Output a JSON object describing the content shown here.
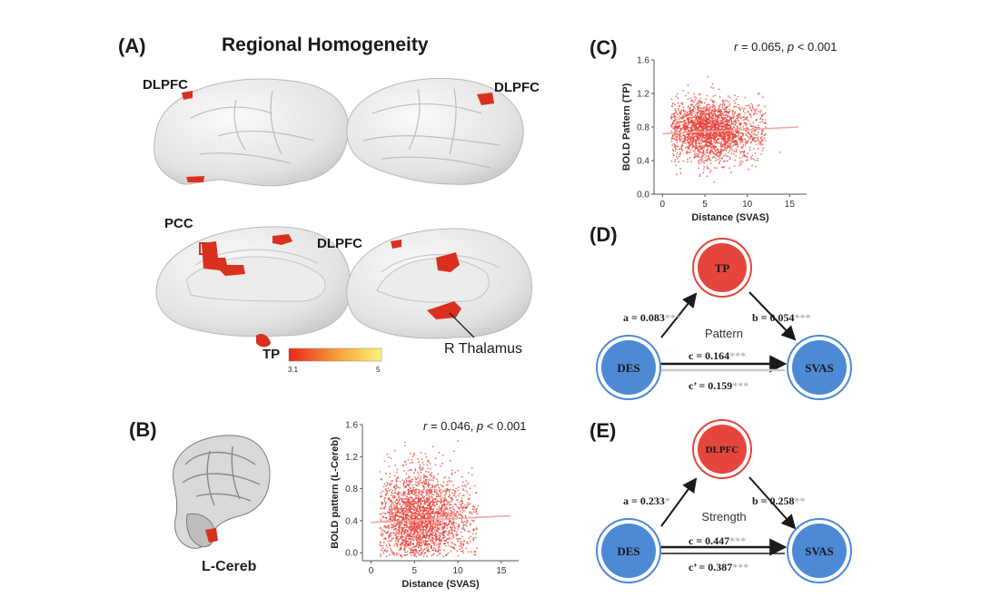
{
  "panel_a": {
    "letter": "(A)",
    "title": "Regional Homogeneity",
    "labels": {
      "dlpfc_left_lateral": "DLPFC",
      "dlpfc_right_lateral": "DLPFC",
      "pcc": "PCC",
      "dlpfc_medial": "DLPFC",
      "tp": "TP",
      "r_thalamus": "R Thalamus"
    },
    "colorbar": {
      "min_label": "3.1",
      "max_label": "5",
      "colors": [
        "#e8281e",
        "#f6a43a",
        "#fff27a"
      ]
    }
  },
  "panel_b": {
    "letter": "(B)",
    "brain_label": "L-Cereb",
    "stat_text": {
      "r_sym": "r",
      "r_val": " = 0.046, ",
      "p_sym": "p",
      "p_val": " < 0.001"
    }
  },
  "panel_c": {
    "letter": "(C)",
    "stat_text": {
      "r_sym": "r",
      "r_val": " = 0.065, ",
      "p_sym": "p",
      "p_val": " < 0.001"
    }
  },
  "panel_d": {
    "letter": "(D)",
    "mediator": "TP",
    "left": "DES",
    "right": "SVAS",
    "middle_label": "Pattern",
    "a": {
      "text": "a = 0.083",
      "stars": "***"
    },
    "b": {
      "text": "b = 0.054",
      "stars": "***"
    },
    "c": {
      "text": "c = 0.164",
      "stars": "***"
    },
    "c_prime": {
      "text": "c’ = 0.159",
      "stars": "***"
    }
  },
  "panel_e": {
    "letter": "(E)",
    "mediator": "DLPFC",
    "left": "DES",
    "right": "SVAS",
    "middle_label": "Strength",
    "a": {
      "text": "a = 0.233",
      "stars": "*"
    },
    "b": {
      "text": "b = 0.258",
      "stars": "**"
    },
    "c": {
      "text": "c = 0.447",
      "stars": "***"
    },
    "c_prime": {
      "text": "c’ = 0.387",
      "stars": "***"
    }
  },
  "colors": {
    "scatter_point": "#e8443c",
    "node_red": "#e5453d",
    "node_blue": "#4d8ad6",
    "brain_gray": "#e2e2e2",
    "activation": "#d9301f"
  },
  "chart_data": [
    {
      "type": "scatter",
      "id": "panel_c",
      "xlabel": "Distance (SVAS)",
      "ylabel": "BOLD Pattern (TP)",
      "xlim": [
        -1,
        17
      ],
      "ylim": [
        0,
        1.6
      ],
      "xticks": [
        0,
        5,
        10,
        15
      ],
      "yticks": [
        0.0,
        0.4,
        0.8,
        1.2,
        1.6
      ],
      "ytick_labels": [
        "0.0",
        "0.4",
        "0.8",
        "1.2",
        "1.6"
      ],
      "r": 0.065,
      "p": "< 0.001",
      "fit_line": {
        "x": [
          0,
          16
        ],
        "y": [
          0.72,
          0.8
        ]
      },
      "cloud": {
        "x_center": 5.5,
        "x_spread": 2.2,
        "y_center": 0.76,
        "y_spread": 0.17,
        "x_range": [
          1.0,
          16.0
        ],
        "y_range": [
          0.1,
          1.45
        ],
        "n_points": 2400
      }
    },
    {
      "type": "scatter",
      "id": "panel_b",
      "xlabel": "Distance (SVAS)",
      "ylabel": "BOLD pattern (L-Cereb)",
      "xlim": [
        -1,
        17
      ],
      "ylim": [
        -0.1,
        1.6
      ],
      "xticks": [
        0,
        5,
        10,
        15
      ],
      "yticks": [
        0.0,
        0.4,
        0.8,
        1.2,
        1.6
      ],
      "ytick_labels": [
        "0.0",
        "0.4",
        "0.8",
        "1.2",
        "1.6"
      ],
      "r": 0.046,
      "p": "< 0.001",
      "fit_line": {
        "x": [
          0,
          16
        ],
        "y": [
          0.38,
          0.46
        ]
      },
      "cloud": {
        "x_center": 5.5,
        "x_spread": 2.3,
        "y_center": 0.42,
        "y_spread": 0.3,
        "x_range": [
          1.0,
          16.0
        ],
        "y_range": [
          -0.05,
          1.55
        ],
        "n_points": 2600
      }
    }
  ]
}
